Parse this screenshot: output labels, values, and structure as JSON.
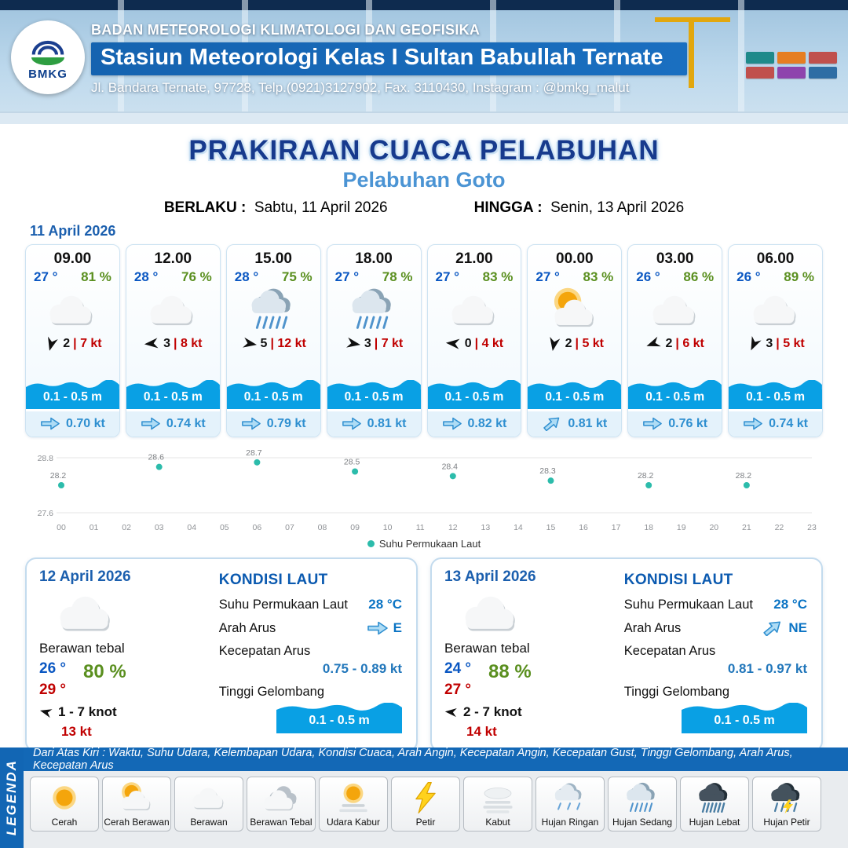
{
  "header": {
    "logo_text": "BMKG",
    "org": "BADAN METEOROLOGI KLIMATOLOGI DAN GEOFISIKA",
    "station": "Stasiun Meteorologi Kelas I Sultan Babullah Ternate",
    "address": "Jl. Bandara Ternate, 97728, Telp.(0921)3127902, Fax. 3110430, Instagram : @bmkg_malut"
  },
  "title": {
    "main": "PRAKIRAAN CUACA PELABUHAN",
    "subtitle": "Pelabuhan Goto",
    "berlaku_label": "BERLAKU :",
    "berlaku_value": "Sabtu, 11 April 2026",
    "hingga_label": "HINGGA :",
    "hingga_value": "Senin, 13 April 2026"
  },
  "forecast_date": "11 April 2026",
  "forecast_cards": [
    {
      "time": "09.00",
      "temp": "27 °",
      "humidity": "81 %",
      "icon": "berawan",
      "wind_rot": 105,
      "wind_speed": "2",
      "gust": "| 7 kt",
      "wave": "0.1 - 0.5 m",
      "current_rot": 0,
      "current_speed": "0.70 kt"
    },
    {
      "time": "12.00",
      "temp": "28 °",
      "humidity": "76 %",
      "icon": "berawan",
      "wind_rot": 175,
      "wind_speed": "3",
      "gust": "| 8 kt",
      "wave": "0.1 - 0.5 m",
      "current_rot": 0,
      "current_speed": "0.74 kt"
    },
    {
      "time": "15.00",
      "temp": "28 °",
      "humidity": "75 %",
      "icon": "hujan-sedang",
      "wind_rot": 10,
      "wind_speed": "5",
      "gust": "| 12 kt",
      "wave": "0.1 - 0.5 m",
      "current_rot": 0,
      "current_speed": "0.79 kt"
    },
    {
      "time": "18.00",
      "temp": "27 °",
      "humidity": "78 %",
      "icon": "hujan-sedang",
      "wind_rot": 10,
      "wind_speed": "3",
      "gust": "| 7 kt",
      "wave": "0.1 - 0.5 m",
      "current_rot": 0,
      "current_speed": "0.81 kt"
    },
    {
      "time": "21.00",
      "temp": "27 °",
      "humidity": "83 %",
      "icon": "berawan",
      "wind_rot": 185,
      "wind_speed": "0",
      "gust": "| 4 kt",
      "wave": "0.1 - 0.5 m",
      "current_rot": 0,
      "current_speed": "0.82 kt"
    },
    {
      "time": "00.00",
      "temp": "27 °",
      "humidity": "83 %",
      "icon": "cerah-berawan",
      "wind_rot": 100,
      "wind_speed": "2",
      "gust": "| 5 kt",
      "wave": "0.1 - 0.5 m",
      "current_rot": -40,
      "current_speed": "0.81 kt"
    },
    {
      "time": "03.00",
      "temp": "26 °",
      "humidity": "86 %",
      "icon": "berawan",
      "wind_rot": 160,
      "wind_speed": "2",
      "gust": "| 6 kt",
      "wave": "0.1 - 0.5 m",
      "current_rot": 0,
      "current_speed": "0.76 kt"
    },
    {
      "time": "06.00",
      "temp": "26 °",
      "humidity": "89 %",
      "icon": "berawan",
      "wind_rot": 115,
      "wind_speed": "3",
      "gust": "| 5 kt",
      "wave": "0.1 - 0.5 m",
      "current_rot": 0,
      "current_speed": "0.74 kt"
    }
  ],
  "chart_data": {
    "type": "scatter",
    "title": "",
    "xlabel": "",
    "ylabel": "",
    "x": [
      0,
      3,
      6,
      9,
      12,
      15,
      18,
      21
    ],
    "values": [
      28.2,
      28.6,
      28.7,
      28.5,
      28.4,
      28.3,
      28.2,
      28.2
    ],
    "x_ticks": [
      "00",
      "01",
      "02",
      "03",
      "04",
      "05",
      "06",
      "07",
      "08",
      "09",
      "10",
      "11",
      "12",
      "13",
      "14",
      "15",
      "16",
      "17",
      "18",
      "19",
      "20",
      "21",
      "22",
      "23"
    ],
    "ylim": [
      27.6,
      28.8
    ],
    "y_ticks": [
      28.8,
      27.6
    ],
    "grid": true,
    "legend": "Suhu Permukaan Laut",
    "legend_position": "bottom",
    "dot_color": "#2cbcab"
  },
  "sea_labels": {
    "kondisi": "KONDISI LAUT",
    "sst": "Suhu Permukaan Laut",
    "arah": "Arah Arus",
    "kecepatan": "Kecepatan Arus",
    "gelombang": "Tinggi Gelombang"
  },
  "daily_cards": [
    {
      "date": "12 April 2026",
      "icon": "berawan",
      "condition": "Berawan tebal",
      "temp_min": "26 °",
      "temp_max": "29 °",
      "humidity": "80 %",
      "wind_rot": 195,
      "wind_range": "1 - 7 knot",
      "gust": "13 kt",
      "sst": "28 °C",
      "current_dir": "E",
      "current_rot": 0,
      "current_speed": "0.75 - 0.89 kt",
      "wave": "0.1 - 0.5 m"
    },
    {
      "date": "13 April 2026",
      "icon": "berawan",
      "condition": "Berawan tebal",
      "temp_min": "24 °",
      "temp_max": "27 °",
      "humidity": "88 %",
      "wind_rot": 185,
      "wind_range": "2 - 7 knot",
      "gust": "14 kt",
      "sst": "28 °C",
      "current_dir": "NE",
      "current_rot": -40,
      "current_speed": "0.81 - 0.97 kt",
      "wave": "0.1 - 0.5 m"
    }
  ],
  "legend": {
    "title": "LEGENDA",
    "note": "Dari Atas Kiri : Waktu, Suhu Udara, Kelembapan Udara, Kondisi Cuaca, Arah Angin, Kecepatan Angin, Kecepatan Gust, Tinggi Gelombang, Arah Arus, Kecepatan Arus",
    "items": [
      {
        "label": "Cerah",
        "icon": "cerah"
      },
      {
        "label": "Cerah Berawan",
        "icon": "cerah-berawan"
      },
      {
        "label": "Berawan",
        "icon": "berawan"
      },
      {
        "label": "Berawan Tebal",
        "icon": "berawan-tebal"
      },
      {
        "label": "Udara Kabur",
        "icon": "udara-kabur"
      },
      {
        "label": "Petir",
        "icon": "petir"
      },
      {
        "label": "Kabut",
        "icon": "kabut"
      },
      {
        "label": "Hujan Ringan",
        "icon": "hujan-ringan"
      },
      {
        "label": "Hujan Sedang",
        "icon": "hujan-sedang"
      },
      {
        "label": "Hujan Lebat",
        "icon": "hujan-lebat"
      },
      {
        "label": "Hujan Petir",
        "icon": "hujan-petir"
      }
    ]
  },
  "colors": {
    "accent_blue": "#1563b0",
    "temp_blue": "#0a57c2",
    "humidity_green": "#5a8f1f",
    "gust_red": "#c00000",
    "wave_blue": "#09a0e4",
    "sst_dot": "#2cbcab"
  }
}
